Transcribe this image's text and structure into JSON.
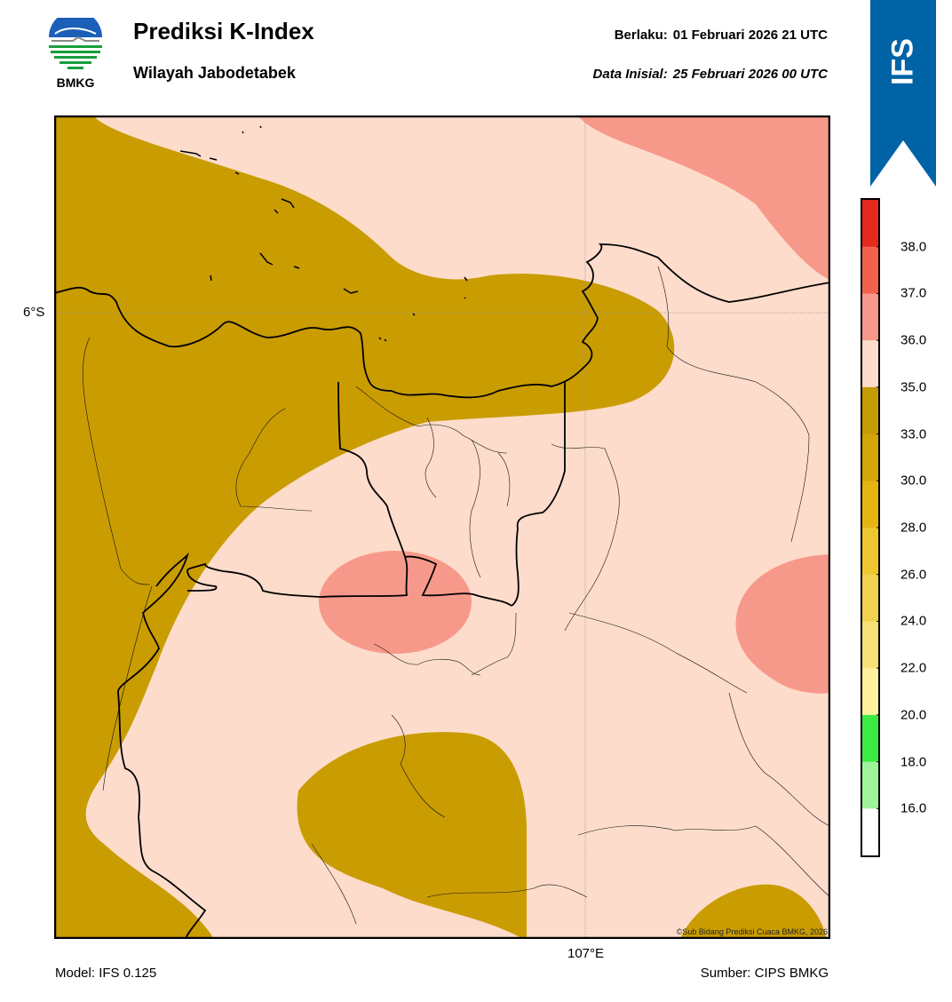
{
  "header": {
    "title": "Prediksi K-Index",
    "subtitle": "Wilayah Jabodetabek",
    "valid_label": "Berlaku:",
    "valid_time": "01 Februari 2026 21 UTC",
    "init_label": "Data Inisial:",
    "init_time": "25 Februari 2026 00 UTC"
  },
  "logo": {
    "text": "BMKG",
    "icon": "bmkg-logo"
  },
  "banner": {
    "text": "IFS",
    "color": "#0063a6"
  },
  "map": {
    "lat_label": "6°S",
    "lon_label": "107°E",
    "copyright": "©Sub Bidang Prediksi Cuaca BMKG, 2026"
  },
  "footer": {
    "model": "Model: IFS 0.125",
    "source": "Sumber: CIPS BMKG"
  },
  "colorbar": {
    "ticks": [
      "38.0",
      "37.0",
      "36.0",
      "35.0",
      "33.0",
      "30.0",
      "28.0",
      "26.0",
      "24.0",
      "22.0",
      "20.0",
      "18.0",
      "16.0"
    ],
    "colors": [
      "#e42a1c",
      "#f2614c",
      "#f7998a",
      "#fddccb",
      "#c69b02",
      "#d4a509",
      "#e6b511",
      "#edc630",
      "#f1d250",
      "#f8e174",
      "#fff09e",
      "#3bea42",
      "#9ef49b",
      "#ffffff"
    ]
  }
}
